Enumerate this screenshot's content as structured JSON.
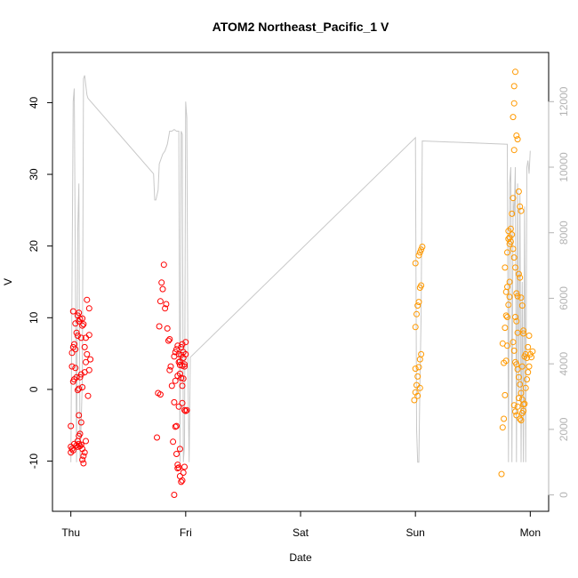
{
  "chart_data": {
    "type": "scatter",
    "title": "ATOM2 Northeast_Pacific_1 V",
    "xlabel": "Date",
    "ylabel": "V",
    "x_tick_labels": [
      "Thu",
      "Fri",
      "Sat",
      "Sun",
      "Mon"
    ],
    "x_tick_positions_days": [
      0,
      1,
      2,
      3,
      4
    ],
    "xlim_days": [
      -0.16,
      4.16
    ],
    "ylim": [
      -17,
      47
    ],
    "y_ticks": [
      -10,
      0,
      10,
      20,
      30,
      40
    ],
    "y2_ticks": [
      0,
      2000,
      4000,
      6000,
      8000,
      10000,
      12000
    ],
    "y2lim": [
      -500,
      13500
    ],
    "grid": false,
    "colors": {
      "red_points": "#ff0000",
      "orange_points": "#ff9900",
      "right_series": "#c8c8c8"
    },
    "series": [
      {
        "color": "red",
        "points": [
          [
            0.0,
            -8.8
          ],
          [
            0.0,
            -8.0
          ],
          [
            0.01,
            -8.3
          ],
          [
            0.02,
            -8.5
          ],
          [
            0.03,
            -7.6
          ],
          [
            0.05,
            -7.8
          ],
          [
            0.06,
            -8.0
          ],
          [
            0.07,
            -7.6
          ],
          [
            0.08,
            -7.9
          ],
          [
            0.09,
            -7.7
          ],
          [
            0.1,
            -8.3
          ],
          [
            0.06,
            -7.2
          ],
          [
            0.07,
            -6.5
          ],
          [
            0.08,
            -6.2
          ],
          [
            0.07,
            -3.6
          ],
          [
            0.09,
            -4.6
          ],
          [
            0.1,
            -9.8
          ],
          [
            0.11,
            -10.3
          ],
          [
            0.11,
            -9.3
          ],
          [
            0.12,
            -8.8
          ],
          [
            0.13,
            -7.2
          ],
          [
            0.0,
            -5.1
          ],
          [
            0.02,
            1.1
          ],
          [
            0.03,
            1.4
          ],
          [
            0.01,
            3.2
          ],
          [
            0.04,
            3.0
          ],
          [
            0.05,
            1.7
          ],
          [
            0.06,
            -0.1
          ],
          [
            0.07,
            0.1
          ],
          [
            0.08,
            1.7
          ],
          [
            0.1,
            0.3
          ],
          [
            0.09,
            2.1
          ],
          [
            0.12,
            2.4
          ],
          [
            0.13,
            3.8
          ],
          [
            0.14,
            4.9
          ],
          [
            0.15,
            -0.9
          ],
          [
            0.16,
            2.7
          ],
          [
            0.17,
            4.2
          ],
          [
            0.12,
            5.9
          ],
          [
            0.16,
            7.6
          ],
          [
            0.01,
            5.1
          ],
          [
            0.02,
            5.9
          ],
          [
            0.03,
            6.3
          ],
          [
            0.04,
            5.6
          ],
          [
            0.05,
            7.9
          ],
          [
            0.06,
            7.5
          ],
          [
            0.07,
            9.5
          ],
          [
            0.08,
            9.8
          ],
          [
            0.09,
            7.2
          ],
          [
            0.1,
            8.9
          ],
          [
            0.02,
            10.9
          ],
          [
            0.04,
            9.2
          ],
          [
            0.06,
            10.3
          ],
          [
            0.07,
            10.7
          ],
          [
            0.1,
            9.9
          ],
          [
            0.11,
            9.1
          ],
          [
            0.13,
            7.2
          ],
          [
            0.14,
            12.5
          ],
          [
            0.16,
            11.3
          ],
          [
            0.75,
            -6.7
          ],
          [
            0.76,
            -0.5
          ],
          [
            0.78,
            -0.7
          ],
          [
            0.77,
            8.8
          ],
          [
            0.78,
            12.3
          ],
          [
            0.79,
            14.9
          ],
          [
            0.8,
            14.0
          ],
          [
            0.81,
            17.4
          ],
          [
            0.82,
            11.3
          ],
          [
            0.83,
            11.9
          ],
          [
            0.84,
            8.5
          ],
          [
            0.85,
            6.8
          ],
          [
            0.86,
            7.0
          ],
          [
            0.86,
            2.7
          ],
          [
            0.87,
            3.2
          ],
          [
            0.88,
            0.5
          ],
          [
            0.89,
            -7.3
          ],
          [
            0.9,
            -1.8
          ],
          [
            0.91,
            -5.2
          ],
          [
            0.92,
            -5.1
          ],
          [
            0.91,
            1.2
          ],
          [
            0.93,
            1.9
          ],
          [
            0.94,
            3.8
          ],
          [
            0.95,
            2.2
          ],
          [
            0.96,
            1.6
          ],
          [
            0.97,
            0.5
          ],
          [
            0.98,
            1.5
          ],
          [
            0.99,
            -2.9
          ],
          [
            1.0,
            -3.0
          ],
          [
            1.01,
            -2.9
          ],
          [
            0.9,
            4.6
          ],
          [
            0.91,
            5.2
          ],
          [
            0.92,
            5.6
          ],
          [
            0.93,
            6.1
          ],
          [
            0.94,
            4.9
          ],
          [
            0.95,
            3.4
          ],
          [
            0.96,
            5.9
          ],
          [
            0.97,
            6.3
          ],
          [
            0.98,
            4.4
          ],
          [
            1.0,
            6.6
          ],
          [
            0.92,
            -9.0
          ],
          [
            0.93,
            -10.5
          ],
          [
            0.94,
            -10.9
          ],
          [
            0.95,
            -12.1
          ],
          [
            0.96,
            -12.9
          ],
          [
            0.97,
            -12.7
          ],
          [
            0.98,
            -11.6
          ],
          [
            0.99,
            -10.8
          ],
          [
            0.93,
            -11.0
          ],
          [
            0.95,
            -8.3
          ],
          [
            0.9,
            -14.7
          ],
          [
            0.94,
            -2.4
          ],
          [
            0.97,
            -1.9
          ],
          [
            0.99,
            3.2
          ],
          [
            1.0,
            4.9
          ],
          [
            0.99,
            3.5
          ],
          [
            0.96,
            4.8
          ],
          [
            0.98,
            5.2
          ],
          [
            0.95,
            3.9
          ],
          [
            0.97,
            3.3
          ]
        ]
      },
      {
        "color": "orange",
        "points": [
          [
            2.99,
            -1.5
          ],
          [
            3.0,
            -0.4
          ],
          [
            3.01,
            0.6
          ],
          [
            3.02,
            1.8
          ],
          [
            3.03,
            3.1
          ],
          [
            3.04,
            4.2
          ],
          [
            3.05,
            4.9
          ],
          [
            3.0,
            2.9
          ],
          [
            3.02,
            -0.9
          ],
          [
            3.04,
            0.2
          ],
          [
            3.0,
            8.7
          ],
          [
            3.01,
            10.5
          ],
          [
            3.02,
            11.7
          ],
          [
            3.03,
            12.2
          ],
          [
            3.04,
            14.2
          ],
          [
            3.05,
            14.5
          ],
          [
            3.0,
            17.6
          ],
          [
            3.03,
            18.7
          ],
          [
            3.04,
            19.1
          ],
          [
            3.05,
            19.5
          ],
          [
            3.06,
            19.9
          ],
          [
            3.75,
            -11.8
          ],
          [
            3.76,
            -5.3
          ],
          [
            3.77,
            -4.1
          ],
          [
            3.78,
            -0.8
          ],
          [
            3.77,
            3.7
          ],
          [
            3.79,
            4.0
          ],
          [
            3.8,
            6.1
          ],
          [
            3.76,
            6.4
          ],
          [
            3.78,
            8.6
          ],
          [
            3.79,
            10.3
          ],
          [
            3.8,
            10.1
          ],
          [
            3.81,
            11.8
          ],
          [
            3.82,
            12.9
          ],
          [
            3.79,
            13.6
          ],
          [
            3.8,
            14.3
          ],
          [
            3.82,
            15.0
          ],
          [
            3.78,
            17.0
          ],
          [
            3.8,
            19.1
          ],
          [
            3.81,
            21.0
          ],
          [
            3.82,
            20.3
          ],
          [
            3.83,
            22.4
          ],
          [
            3.84,
            21.6
          ],
          [
            3.85,
            19.6
          ],
          [
            3.86,
            18.4
          ],
          [
            3.87,
            17.0
          ],
          [
            3.88,
            13.4
          ],
          [
            3.89,
            13.0
          ],
          [
            3.87,
            10.1
          ],
          [
            3.88,
            9.5
          ],
          [
            3.89,
            7.9
          ],
          [
            3.81,
            22.1
          ],
          [
            3.82,
            21.2
          ],
          [
            3.83,
            20.6
          ],
          [
            3.84,
            24.5
          ],
          [
            3.85,
            26.7
          ],
          [
            3.86,
            33.4
          ],
          [
            3.85,
            38.0
          ],
          [
            3.86,
            39.9
          ],
          [
            3.86,
            42.3
          ],
          [
            3.87,
            44.3
          ],
          [
            3.88,
            35.4
          ],
          [
            3.89,
            34.9
          ],
          [
            3.9,
            27.6
          ],
          [
            3.91,
            25.5
          ],
          [
            3.92,
            24.9
          ],
          [
            3.9,
            16.1
          ],
          [
            3.91,
            15.6
          ],
          [
            3.92,
            12.8
          ],
          [
            3.93,
            11.7
          ],
          [
            3.94,
            7.8
          ],
          [
            3.85,
            6.6
          ],
          [
            3.86,
            5.4
          ],
          [
            3.87,
            3.8
          ],
          [
            3.88,
            3.5
          ],
          [
            3.89,
            2.8
          ],
          [
            3.9,
            1.7
          ],
          [
            3.91,
            0.7
          ],
          [
            3.92,
            -0.5
          ],
          [
            3.93,
            -1.4
          ],
          [
            3.94,
            -2.1
          ],
          [
            3.86,
            -2.2
          ],
          [
            3.87,
            -3.1
          ],
          [
            3.88,
            -3.6
          ],
          [
            3.89,
            -2.4
          ],
          [
            3.9,
            -1.2
          ],
          [
            3.91,
            -4.1
          ],
          [
            3.92,
            -4.3
          ],
          [
            3.93,
            -3.3
          ],
          [
            3.94,
            -3.0
          ],
          [
            3.95,
            -2.0
          ],
          [
            3.96,
            0.2
          ],
          [
            3.97,
            1.4
          ],
          [
            3.98,
            2.4
          ],
          [
            3.99,
            3.2
          ],
          [
            3.95,
            4.6
          ],
          [
            3.96,
            4.9
          ],
          [
            3.97,
            4.4
          ],
          [
            3.98,
            5.9
          ],
          [
            3.99,
            7.5
          ],
          [
            4.0,
            4.9
          ],
          [
            4.01,
            4.5
          ],
          [
            4.02,
            5.3
          ],
          [
            3.93,
            3.2
          ],
          [
            3.94,
            8.2
          ]
        ]
      }
    ],
    "right_axis_series": {
      "color": "gray",
      "points": [
        [
          0.0,
          1000
        ],
        [
          0.02,
          12000
        ],
        [
          0.03,
          12400
        ],
        [
          0.05,
          1000
        ],
        [
          0.06,
          8000
        ],
        [
          0.07,
          9500
        ],
        [
          0.08,
          1000
        ],
        [
          0.1,
          3500
        ],
        [
          0.11,
          12700
        ],
        [
          0.12,
          12800
        ],
        [
          0.13,
          12500
        ],
        [
          0.14,
          12200
        ],
        [
          0.15,
          12100
        ],
        [
          0.72,
          9800
        ],
        [
          0.73,
          9000
        ],
        [
          0.74,
          9000
        ],
        [
          0.76,
          9300
        ],
        [
          0.77,
          10100
        ],
        [
          0.8,
          10400
        ],
        [
          0.82,
          10500
        ],
        [
          0.84,
          10700
        ],
        [
          0.86,
          11100
        ],
        [
          0.88,
          11100
        ],
        [
          0.9,
          11150
        ],
        [
          0.92,
          11100
        ],
        [
          0.94,
          11100
        ],
        [
          0.95,
          1000
        ],
        [
          0.96,
          11100
        ],
        [
          0.97,
          11000
        ],
        [
          0.98,
          1000
        ],
        [
          0.99,
          1500
        ],
        [
          1.0,
          12000
        ],
        [
          1.01,
          11500
        ],
        [
          1.02,
          3500
        ],
        [
          1.03,
          1000
        ],
        [
          1.04,
          4200
        ],
        [
          3.0,
          10900
        ],
        [
          3.01,
          2000
        ],
        [
          3.02,
          1000
        ],
        [
          3.03,
          1000
        ],
        [
          3.04,
          3500
        ],
        [
          3.05,
          5500
        ],
        [
          3.06,
          10800
        ],
        [
          3.8,
          10700
        ],
        [
          3.81,
          1000
        ],
        [
          3.82,
          9500
        ],
        [
          3.83,
          10000
        ],
        [
          3.84,
          1000
        ],
        [
          3.85,
          9000
        ],
        [
          3.86,
          8500
        ],
        [
          3.87,
          10000
        ],
        [
          3.88,
          1000
        ],
        [
          3.89,
          9500
        ],
        [
          3.9,
          3000
        ],
        [
          3.91,
          9200
        ],
        [
          3.92,
          1000
        ],
        [
          3.93,
          6500
        ],
        [
          3.94,
          1000
        ],
        [
          3.95,
          8800
        ],
        [
          3.96,
          1000
        ],
        [
          3.97,
          10000
        ],
        [
          3.98,
          10200
        ],
        [
          3.99,
          9800
        ],
        [
          4.0,
          10500
        ]
      ]
    }
  }
}
